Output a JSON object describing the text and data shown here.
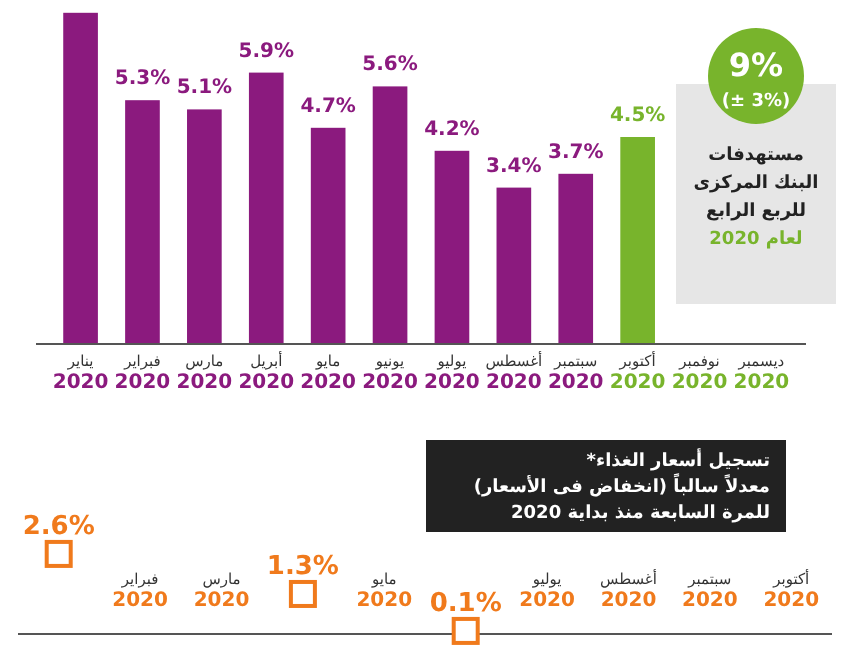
{
  "chart_data": [
    {
      "type": "bar",
      "categories": [
        "يناير\n2020",
        "فبراير\n2020",
        "مارس\n2020",
        "أبريل\n2020",
        "مايو\n2020",
        "يونيو\n2020",
        "يوليو\n2020",
        "أغسطس\n2020",
        "سبتمبر\n2020",
        "أكتوبر\n2020",
        "نوفمبر\n2020",
        "ديسمبر\n2020"
      ],
      "values": [
        7.2,
        5.3,
        5.1,
        5.9,
        4.7,
        5.6,
        4.2,
        3.4,
        3.7,
        4.5,
        null,
        null
      ],
      "value_labels": [
        null,
        "5.3%",
        "5.1%",
        "5.9%",
        "4.7%",
        "5.6%",
        "4.2%",
        "3.4%",
        "3.7%",
        "4.5%",
        null,
        null
      ],
      "colors": [
        "#8b1a7e",
        "#8b1a7e",
        "#8b1a7e",
        "#8b1a7e",
        "#8b1a7e",
        "#8b1a7e",
        "#8b1a7e",
        "#8b1a7e",
        "#8b1a7e",
        "#78b42c",
        "#78b42c",
        "#78b42c"
      ],
      "annotations": [
        "9%",
        "(± 3%)",
        "مستهدفات البنك المركزى للربع الرابع لعام 2020"
      ]
    },
    {
      "type": "line",
      "title": "تسجيل أسعار الغذاء*\nمعدلاً سالباً (انخفاض فى الأسعار)\nللمرة السابعة منذ بداية 2020",
      "categories": [
        null,
        "فبراير\n2020",
        "مارس\n2020",
        null,
        "مايو\n2020",
        null,
        "يوليو\n2020",
        "أغسطس\n2020",
        "سبتمبر\n2020",
        "أكتوبر\n2020"
      ],
      "series": [
        {
          "type": "scatter",
          "color": "#f07a1c",
          "values": [
            2.6,
            null,
            null,
            1.3,
            null,
            0.1,
            null,
            null,
            null,
            null
          ],
          "value_labels": [
            "2.6%",
            null,
            null,
            "1.3%",
            null,
            "0.1%",
            null,
            null,
            null,
            null
          ]
        }
      ],
      "marker": "square"
    }
  ]
}
